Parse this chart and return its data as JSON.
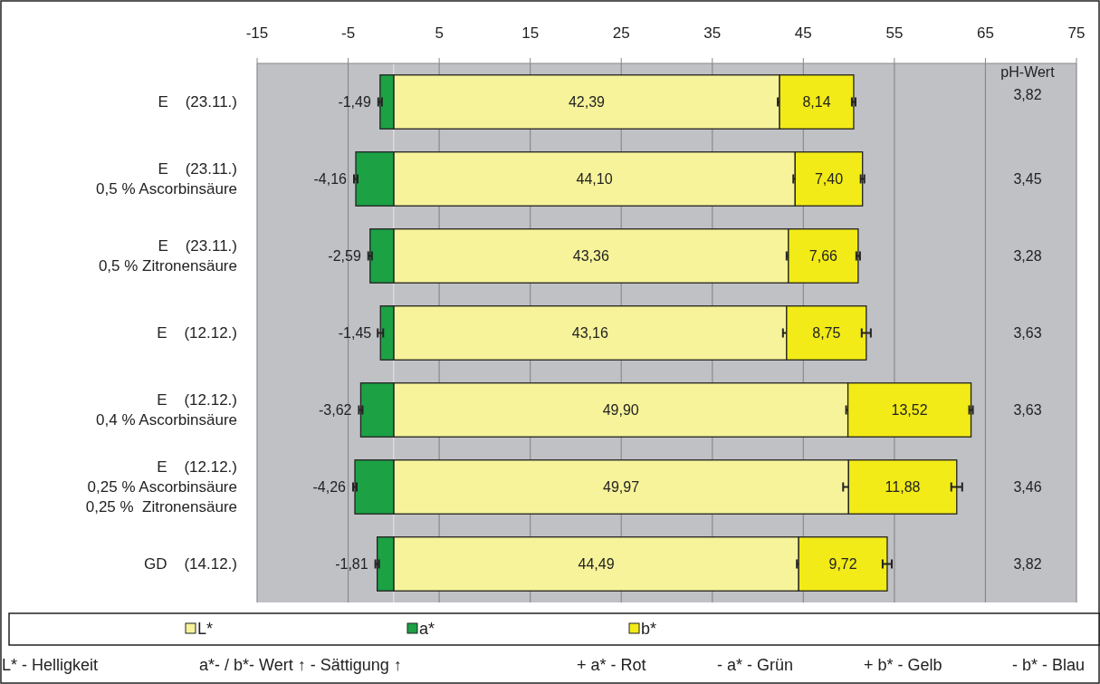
{
  "chart_data": {
    "type": "bar",
    "orientation": "horizontal",
    "stacked": true,
    "categories": [
      "E    (23.11.)",
      "E    (23.11.)\n0,5 % Ascorbinsäure",
      "E    (23.11.)\n0,5 % Zitronensäure",
      "E    (12.12.)",
      "E    (12.12.)\n0,4 % Ascorbinsäure",
      "E    (12.12.)\n0,25 % Ascorbinsäure\n0,25 %  Zitronensäure",
      "GD    (14.12.)"
    ],
    "series": [
      {
        "name": "L*",
        "color": "#f7f39a",
        "values": [
          42.39,
          44.1,
          43.36,
          43.16,
          49.9,
          49.97,
          44.49
        ],
        "value_labels": [
          "42,39",
          "44,10",
          "43,36",
          "43,16",
          "49,90",
          "49,97",
          "44,49"
        ],
        "errors": [
          0.2,
          0.2,
          0.2,
          0.4,
          0.2,
          0.6,
          0.2
        ]
      },
      {
        "name": "a*",
        "color": "#1ca145",
        "values": [
          -1.49,
          -4.16,
          -2.59,
          -1.45,
          -3.62,
          -4.26,
          -1.81
        ],
        "value_labels": [
          "-1,49",
          "-4,16",
          "-2,59",
          "-1,45",
          "-3,62",
          "-4,26",
          "-1,81"
        ],
        "errors": [
          0.2,
          0.2,
          0.2,
          0.3,
          0.2,
          0.2,
          0.2
        ]
      },
      {
        "name": "b*",
        "color": "#f2eb17",
        "values": [
          8.14,
          7.4,
          7.66,
          8.75,
          13.52,
          11.88,
          9.72
        ],
        "value_labels": [
          "8,14",
          "7,40",
          "7,66",
          "8,75",
          "13,52",
          "11,88",
          "9,72"
        ],
        "errors": [
          0.2,
          0.2,
          0.2,
          0.5,
          0.2,
          0.6,
          0.5
        ]
      }
    ],
    "xlim": [
      -15,
      75
    ],
    "xticks": [
      -15,
      -5,
      5,
      15,
      25,
      35,
      45,
      55,
      65,
      75
    ],
    "grid": "x",
    "legend": "bottom",
    "annotations": [
      "pH-Wert",
      "3,82",
      "3,45",
      "3,28",
      "3,63",
      "3,63",
      "3,46",
      "3,82",
      "L* - Helligkeit",
      "a*- / b*- Wert ↑ - Sättigung ↑",
      "+ a* - Rot",
      "- a* - Grün",
      "+ b* - Gelb",
      "- b* - Blau"
    ]
  }
}
